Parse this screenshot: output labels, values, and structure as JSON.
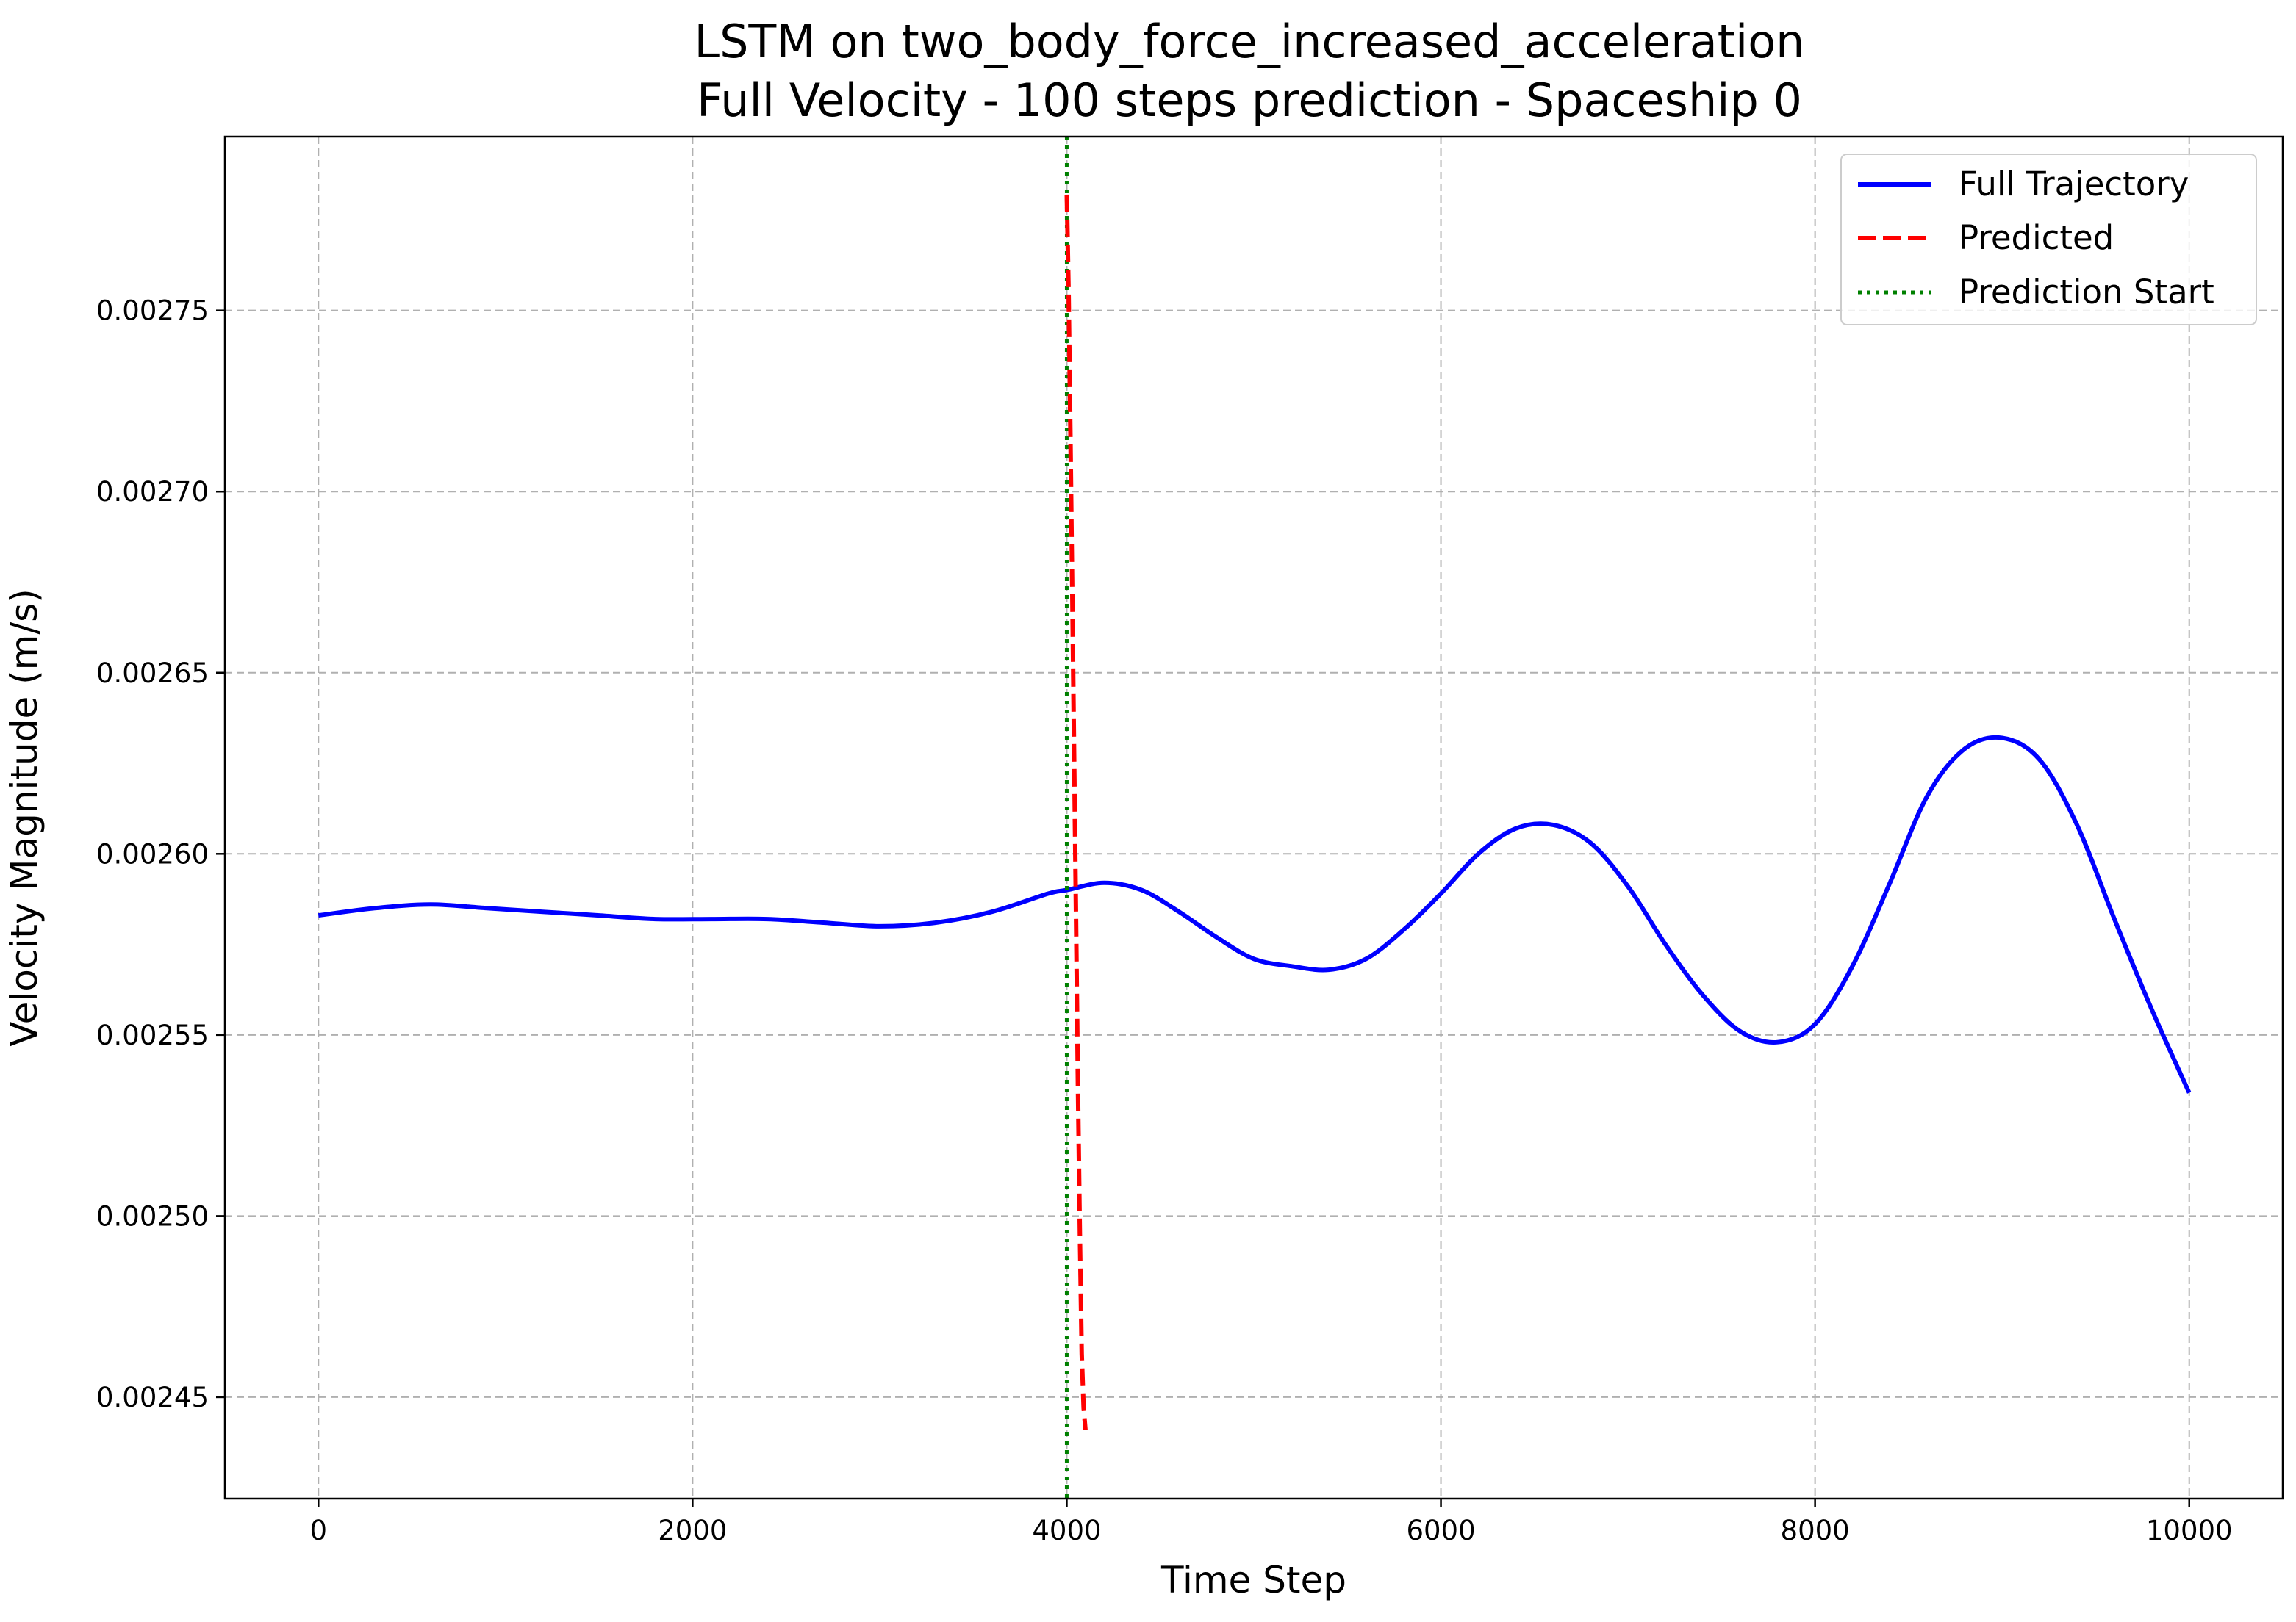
{
  "chart_data": {
    "type": "line",
    "title": "LSTM on two_body_force_increased_acceleration",
    "subtitle": "Full Velocity - 100 steps prediction - Spaceship 0",
    "xlabel": "Time Step",
    "ylabel": "Velocity Magnitude (m/s)",
    "xlim": [
      -500,
      10500
    ],
    "ylim": [
      0.002422,
      0.002798
    ],
    "x_ticks": [
      0,
      2000,
      4000,
      6000,
      8000,
      10000
    ],
    "x_tick_labels": [
      "0",
      "2000",
      "4000",
      "6000",
      "8000",
      "10000"
    ],
    "y_ticks": [
      0.00245,
      0.0025,
      0.00255,
      0.0026,
      0.00265,
      0.0027,
      0.00275
    ],
    "y_tick_labels": [
      "0.00245",
      "0.00250",
      "0.00255",
      "0.00260",
      "0.00265",
      "0.00270",
      "0.00275"
    ],
    "grid": true,
    "legend_position": "top-right",
    "series": [
      {
        "name": "Full Trajectory",
        "style": "solid",
        "color": "#0000ff",
        "x": [
          0,
          300,
          600,
          900,
          1200,
          1500,
          1800,
          2100,
          2400,
          2700,
          3000,
          3300,
          3600,
          3900,
          4000,
          4200,
          4400,
          4600,
          4800,
          5000,
          5200,
          5400,
          5600,
          5800,
          6000,
          6200,
          6400,
          6600,
          6800,
          7000,
          7200,
          7400,
          7600,
          7800,
          8000,
          8200,
          8400,
          8600,
          8800,
          9000,
          9200,
          9400,
          9600,
          9800,
          10000
        ],
        "y": [
          0.002583,
          0.002585,
          0.002586,
          0.002585,
          0.002584,
          0.002583,
          0.002582,
          0.002582,
          0.002582,
          0.002581,
          0.00258,
          0.002581,
          0.002584,
          0.002589,
          0.00259,
          0.002592,
          0.00259,
          0.002584,
          0.002577,
          0.002571,
          0.002569,
          0.002568,
          0.002571,
          0.002579,
          0.002589,
          0.0026,
          0.002607,
          0.002608,
          0.002603,
          0.002591,
          0.002575,
          0.002561,
          0.002551,
          0.002548,
          0.002553,
          0.002569,
          0.002592,
          0.002616,
          0.002629,
          0.002632,
          0.002626,
          0.002608,
          0.002582,
          0.002557,
          0.002534
        ]
      },
      {
        "name": "Predicted",
        "style": "dashed",
        "color": "#ff0000",
        "x": [
          4000,
          4010,
          4020,
          4030,
          4040,
          4050,
          4060,
          4070,
          4080,
          4090,
          4100
        ],
        "y": [
          0.002782,
          0.002755,
          0.002715,
          0.00267,
          0.002625,
          0.00258,
          0.002535,
          0.002495,
          0.002462,
          0.002447,
          0.002441
        ]
      }
    ],
    "vlines": [
      {
        "name": "Prediction Start",
        "style": "dotted",
        "color": "#008000",
        "x": 4000
      }
    ]
  }
}
